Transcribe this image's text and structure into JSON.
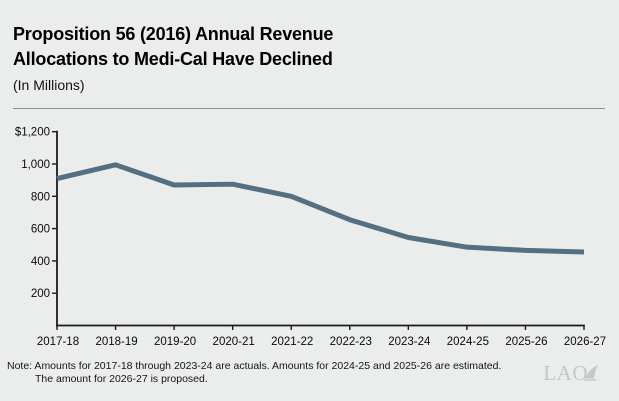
{
  "header": {
    "title_lines": [
      "Proposition 56 (2016) Annual Revenue",
      "Allocations to Medi-Cal Have Declined"
    ],
    "subtitle": "(In Millions)"
  },
  "chart_data": {
    "type": "line",
    "title": "Proposition 56 (2016) Annual Revenue Allocations to Medi-Cal Have Declined",
    "subtitle": "(In Millions)",
    "categories": [
      "2017-18",
      "2018-19",
      "2019-20",
      "2020-21",
      "2021-22",
      "2022-23",
      "2023-24",
      "2024-25",
      "2025-26",
      "2026-27"
    ],
    "series": [
      {
        "name": "Prop 56 annual revenue allocations to Medi-Cal ($ millions)",
        "values": [
          910,
          995,
          870,
          875,
          800,
          655,
          545,
          485,
          465,
          455
        ]
      }
    ],
    "ylim": [
      0,
      1200
    ],
    "yticks": [
      {
        "value": 200,
        "label": "200"
      },
      {
        "value": 400,
        "label": "400"
      },
      {
        "value": 600,
        "label": "600"
      },
      {
        "value": 800,
        "label": "800"
      },
      {
        "value": 1000,
        "label": "1,000"
      },
      {
        "value": 1200,
        "label": "$1,200"
      }
    ],
    "xlabel": "",
    "ylabel": "",
    "grid": false,
    "legend": "none",
    "line_color": "#546e82"
  },
  "note": {
    "line1": "Note: Amounts for 2017-18 through 2023-24 are actuals. Amounts for 2024-25 and 2025-26 are estimated.",
    "line2": "The amount for 2026-27 is proposed."
  },
  "logo": {
    "text": "LAO"
  }
}
